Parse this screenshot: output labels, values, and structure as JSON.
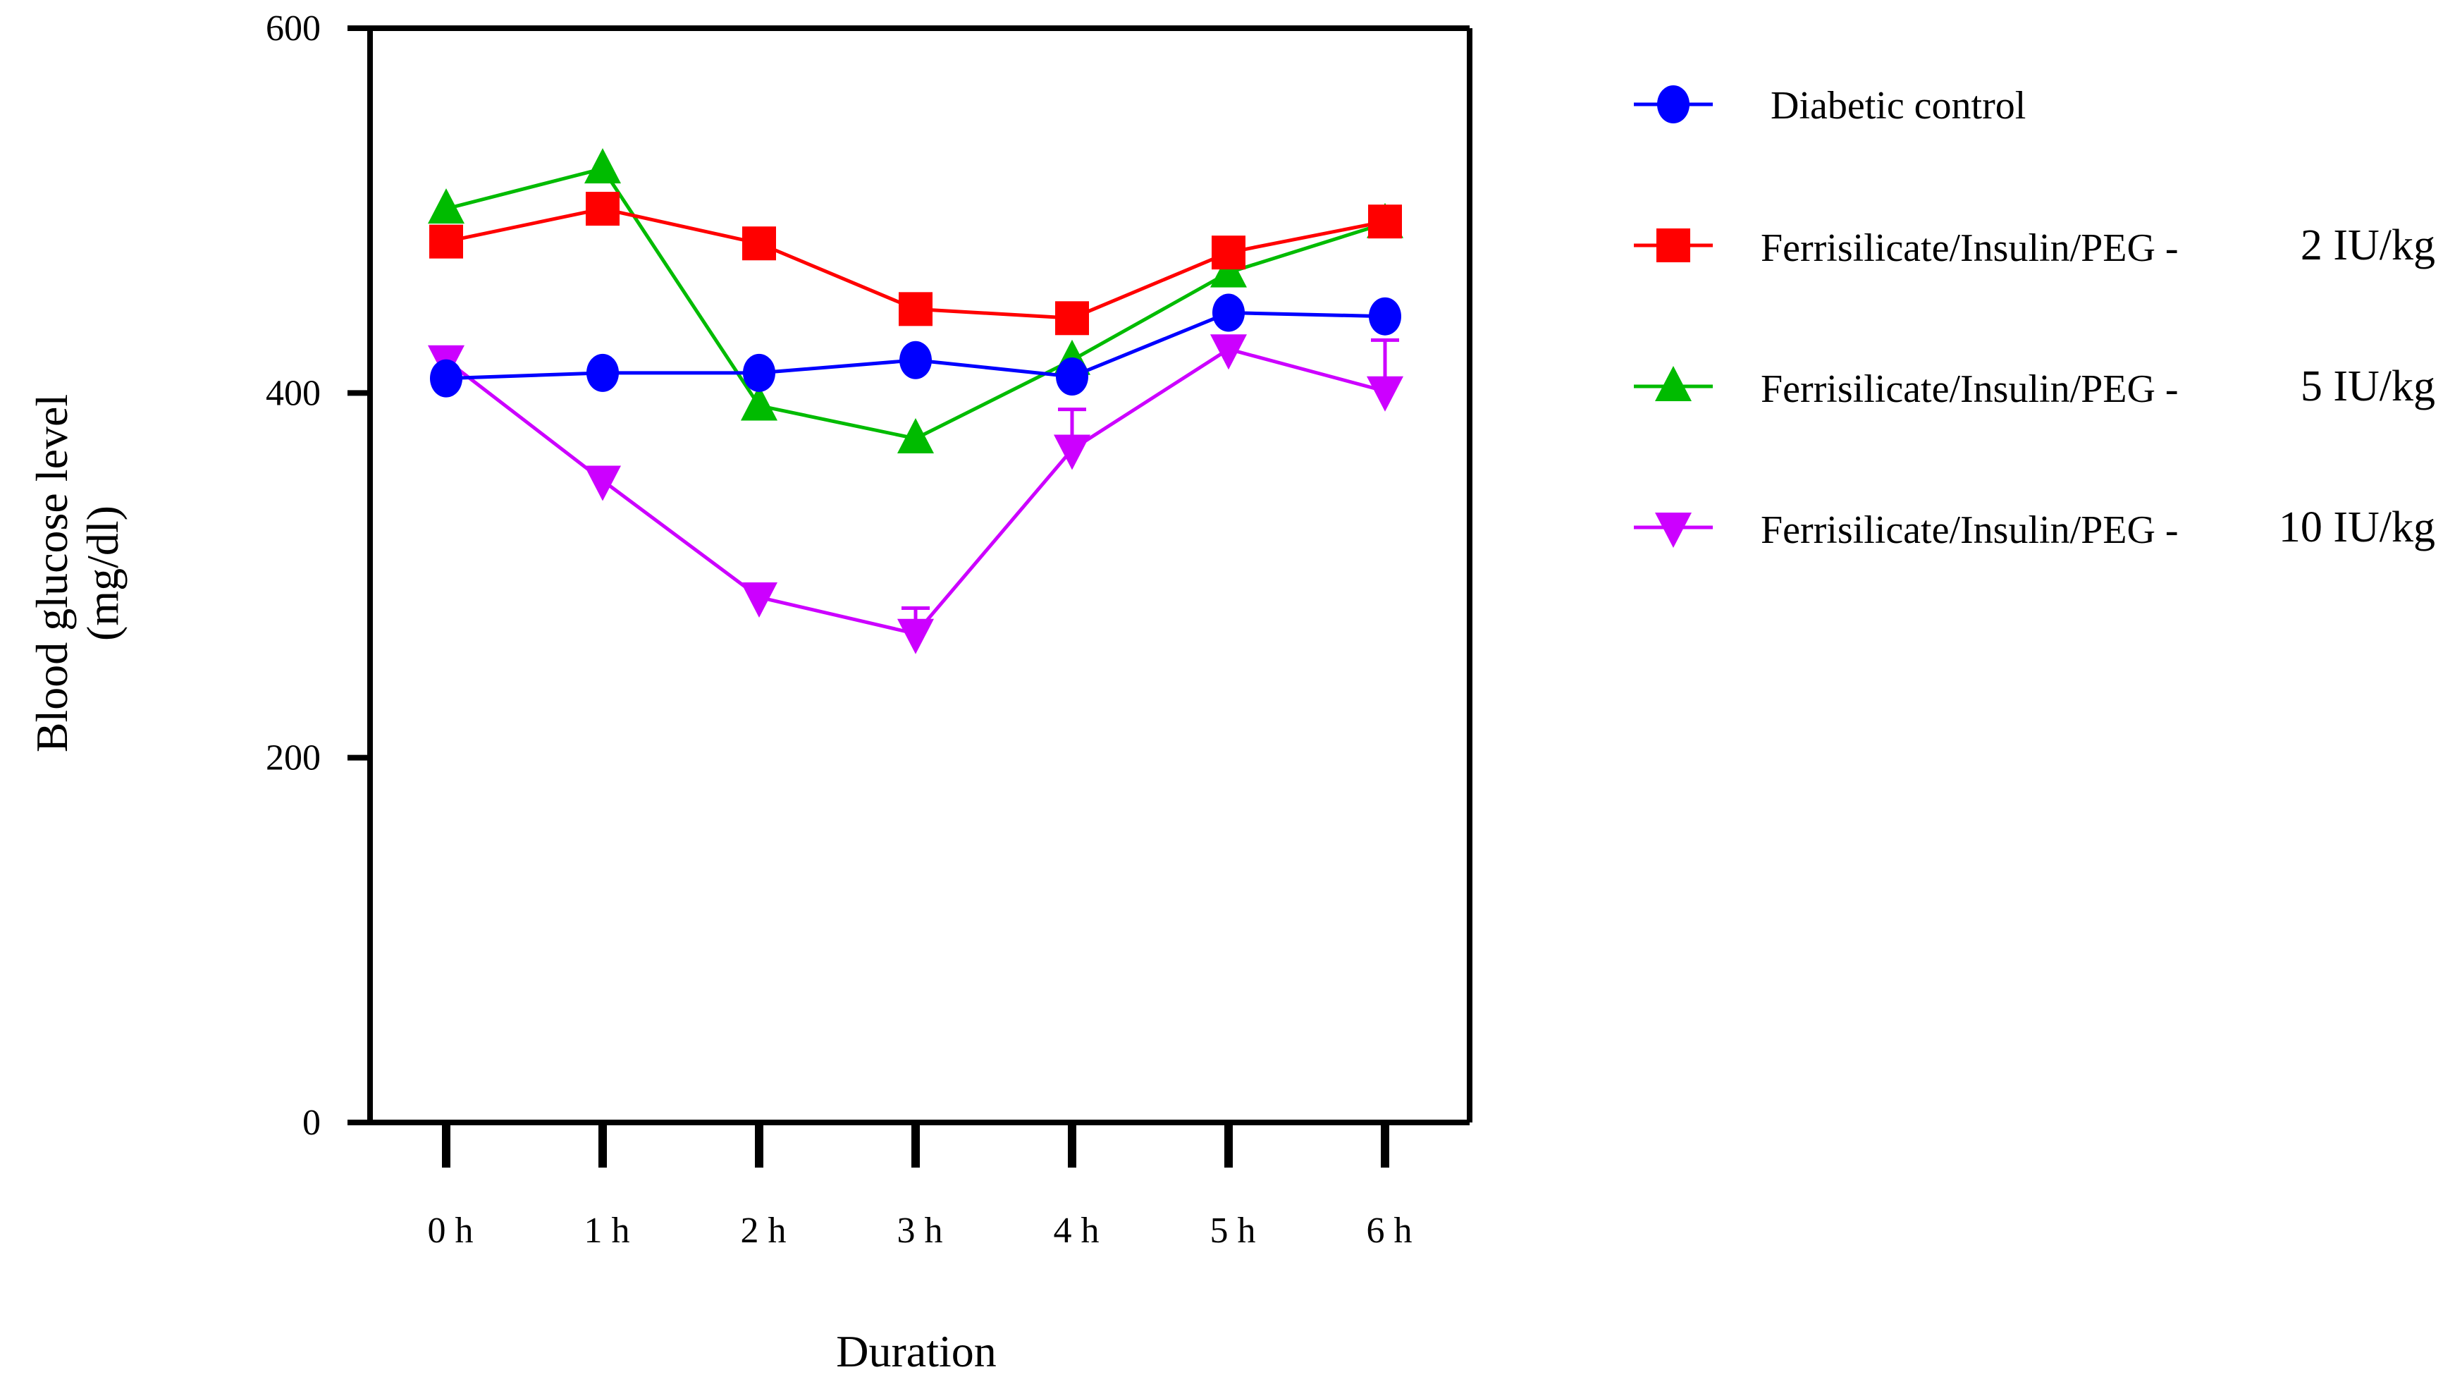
{
  "chart_data": {
    "type": "line",
    "title": "",
    "xlabel": "Duration",
    "ylabel": [
      "Blood glucose level",
      "(mg/dl)"
    ],
    "categories": [
      "0 h",
      "1 h",
      "2 h",
      "3 h",
      "4 h",
      "5 h",
      "6 h"
    ],
    "ylim": [
      0,
      600
    ],
    "yticks": [
      0,
      200,
      400,
      600
    ],
    "grid": false,
    "legend_position": "right",
    "series": [
      {
        "name": "Diabetic control",
        "name_main": "Diabetic control",
        "name_dose": "",
        "color": "#0000ff",
        "marker": "circle",
        "values": [
          408,
          411,
          411,
          418,
          409,
          444,
          442
        ],
        "errors": [
          0,
          0,
          0,
          0,
          0,
          0,
          0
        ]
      },
      {
        "name": "Ferrisilicate/Insulin/PEG - 2 IU/kg",
        "name_main": "Ferrisilicate/Insulin/PEG -",
        "name_dose": "2 IU/kg",
        "color": "#ff0000",
        "marker": "square",
        "values": [
          483,
          501,
          482,
          446,
          441,
          477,
          494
        ],
        "errors": [
          0,
          0,
          0,
          0,
          0,
          0,
          0
        ]
      },
      {
        "name": "Ferrisilicate/Insulin/PEG - 5 IU/kg",
        "name_main": "Ferrisilicate/Insulin/PEG -",
        "name_dose": "5 IU/kg",
        "color": "#00bb00",
        "marker": "triangle-up",
        "values": [
          501,
          523,
          393,
          375,
          418,
          466,
          493
        ],
        "errors": [
          0,
          0,
          0,
          0,
          0,
          0,
          0
        ]
      },
      {
        "name": "Ferrisilicate/Insulin/PEG - 10 IU/kg",
        "name_main": "Ferrisilicate/Insulin/PEG -",
        "name_dose": "10 IU/kg",
        "color": "#cc00ff",
        "marker": "triangle-down",
        "values": [
          418,
          352,
          288,
          268,
          369,
          424,
          401
        ],
        "errors": [
          0,
          0,
          0,
          14,
          22,
          0,
          28
        ]
      }
    ]
  }
}
